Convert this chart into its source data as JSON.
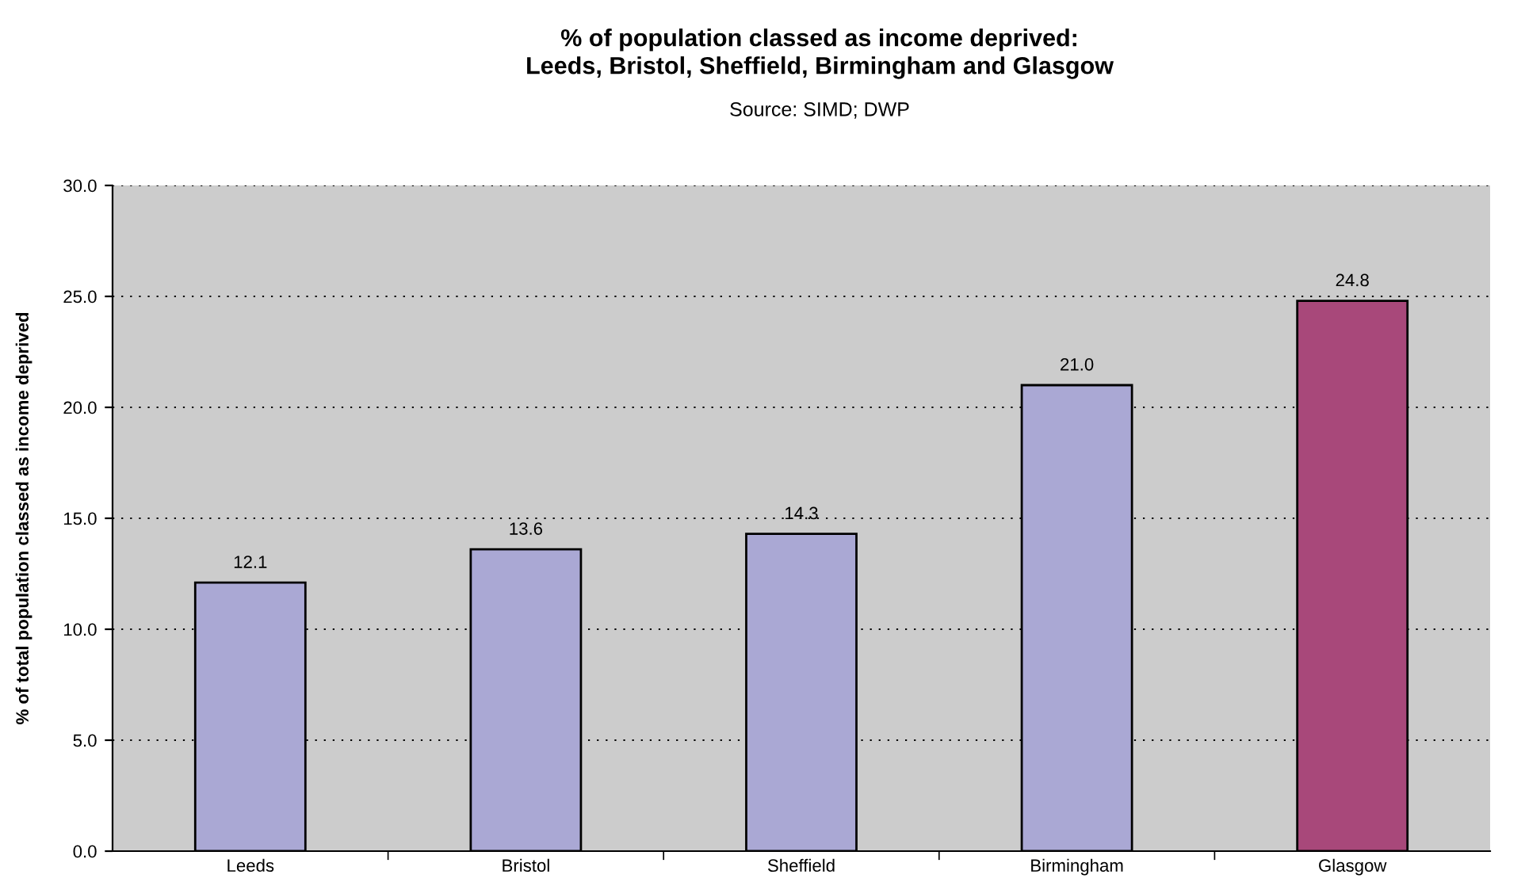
{
  "chart_data": {
    "type": "bar",
    "title": "% of population classed as income deprived:\nLeeds, Bristol, Sheffield, Birmingham and Glasgow",
    "subtitle": "Source: SIMD; DWP",
    "ylabel": "% of total population classed as income deprived",
    "categories": [
      "Leeds",
      "Bristol",
      "Sheffield",
      "Birmingham",
      "Glasgow"
    ],
    "values": [
      12.1,
      13.6,
      14.3,
      21.0,
      24.8
    ],
    "colors": [
      "#aaa8d4",
      "#aaa8d4",
      "#aaa8d4",
      "#aaa8d4",
      "#a8487a"
    ],
    "value_labels": [
      "12.1",
      "13.6",
      "14.3",
      "21.0",
      "24.8"
    ],
    "ylim": [
      0,
      30
    ],
    "yticks": [
      {
        "value": 0,
        "label": "0.0"
      },
      {
        "value": 5,
        "label": "5.0"
      },
      {
        "value": 10,
        "label": "10.0"
      },
      {
        "value": 15,
        "label": "15.0"
      },
      {
        "value": 20,
        "label": "20.0"
      },
      {
        "value": 25,
        "label": "25.0"
      },
      {
        "value": 30,
        "label": "30.0"
      }
    ],
    "grid": "y"
  }
}
